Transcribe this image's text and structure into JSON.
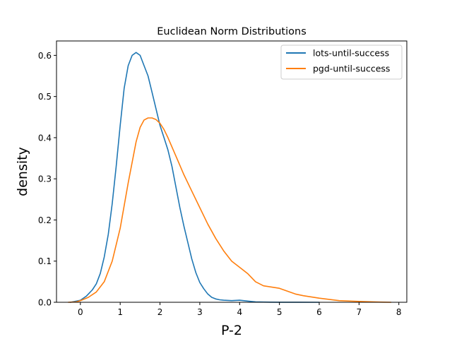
{
  "chart_data": {
    "type": "line",
    "title": "Euclidean Norm Distributions",
    "xlabel": "P-2",
    "ylabel": "density",
    "xlim": [
      -0.6,
      8.2
    ],
    "ylim": [
      0,
      0.635
    ],
    "xticks": [
      0,
      1,
      2,
      3,
      4,
      5,
      6,
      7,
      8
    ],
    "yticks": [
      0.0,
      0.1,
      0.2,
      0.3,
      0.4,
      0.5,
      0.6
    ],
    "grid": false,
    "legend": "top-right",
    "series": [
      {
        "name": "lots-until-success",
        "color": "#1f77b4",
        "x": [
          -0.25,
          0.0,
          0.15,
          0.3,
          0.4,
          0.5,
          0.6,
          0.7,
          0.8,
          0.9,
          1.0,
          1.1,
          1.2,
          1.3,
          1.4,
          1.5,
          1.6,
          1.7,
          1.8,
          1.9,
          2.0,
          2.1,
          2.2,
          2.3,
          2.4,
          2.5,
          2.6,
          2.7,
          2.8,
          2.9,
          3.0,
          3.1,
          3.2,
          3.3,
          3.4,
          3.5,
          3.6,
          3.8,
          4.0,
          4.2,
          4.4,
          4.6,
          5.0,
          5.5,
          6.0
        ],
        "y": [
          0.0,
          0.005,
          0.015,
          0.03,
          0.045,
          0.07,
          0.11,
          0.165,
          0.24,
          0.33,
          0.43,
          0.52,
          0.575,
          0.6,
          0.607,
          0.6,
          0.575,
          0.55,
          0.51,
          0.47,
          0.43,
          0.4,
          0.37,
          0.33,
          0.28,
          0.23,
          0.185,
          0.145,
          0.105,
          0.072,
          0.048,
          0.033,
          0.02,
          0.012,
          0.008,
          0.006,
          0.005,
          0.004,
          0.005,
          0.003,
          0.001,
          0.0005,
          0.0002,
          0.0001,
          0.0
        ]
      },
      {
        "name": "pgd-until-success",
        "color": "#ff7f0e",
        "x": [
          -0.3,
          -0.1,
          0.0,
          0.2,
          0.4,
          0.6,
          0.8,
          1.0,
          1.2,
          1.4,
          1.5,
          1.6,
          1.7,
          1.8,
          1.9,
          2.0,
          2.1,
          2.2,
          2.4,
          2.6,
          2.8,
          3.0,
          3.2,
          3.4,
          3.6,
          3.8,
          4.0,
          4.2,
          4.4,
          4.6,
          4.8,
          5.0,
          5.2,
          5.4,
          5.6,
          6.0,
          6.5,
          7.0,
          7.5,
          7.8
        ],
        "y": [
          0.0,
          0.001,
          0.004,
          0.012,
          0.025,
          0.05,
          0.1,
          0.18,
          0.29,
          0.39,
          0.425,
          0.443,
          0.448,
          0.448,
          0.444,
          0.435,
          0.42,
          0.4,
          0.355,
          0.31,
          0.27,
          0.23,
          0.19,
          0.155,
          0.125,
          0.1,
          0.085,
          0.07,
          0.05,
          0.04,
          0.037,
          0.034,
          0.027,
          0.02,
          0.016,
          0.01,
          0.004,
          0.002,
          0.0005,
          0.0
        ]
      }
    ]
  }
}
